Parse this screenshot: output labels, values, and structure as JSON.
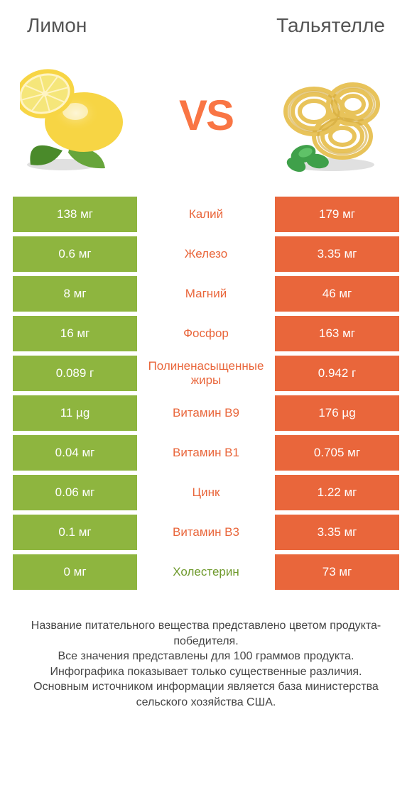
{
  "colors": {
    "left": "#8eb53f",
    "right": "#e9663b",
    "text_left": "#6f9a2d",
    "text_right": "#e9663b",
    "vs": "#f97544",
    "title": "#555555",
    "footer": "#444444",
    "white": "#ffffff"
  },
  "titles": {
    "left": "Лимон",
    "right": "Тальятелле"
  },
  "vs_label": "VS",
  "rows": [
    {
      "left": "138 мг",
      "mid": "Калий",
      "right": "179 мг",
      "winner": "right"
    },
    {
      "left": "0.6 мг",
      "mid": "Железо",
      "right": "3.35 мг",
      "winner": "right"
    },
    {
      "left": "8 мг",
      "mid": "Магний",
      "right": "46 мг",
      "winner": "right"
    },
    {
      "left": "16 мг",
      "mid": "Фосфор",
      "right": "163 мг",
      "winner": "right"
    },
    {
      "left": "0.089 г",
      "mid": "Полиненасыщенные жиры",
      "right": "0.942 г",
      "winner": "right"
    },
    {
      "left": "11 µg",
      "mid": "Витамин B9",
      "right": "176 µg",
      "winner": "right"
    },
    {
      "left": "0.04 мг",
      "mid": "Витамин B1",
      "right": "0.705 мг",
      "winner": "right"
    },
    {
      "left": "0.06 мг",
      "mid": "Цинк",
      "right": "1.22 мг",
      "winner": "right"
    },
    {
      "left": "0.1 мг",
      "mid": "Витамин B3",
      "right": "3.35 мг",
      "winner": "right"
    },
    {
      "left": "0 мг",
      "mid": "Холестерин",
      "right": "73 мг",
      "winner": "left"
    }
  ],
  "footer": "Название питательного вещества представлено цветом продукта-победителя.\nВсе значения представлены для 100 граммов продукта.\nИнфографика показывает только существенные различия.\nОсновным источником информации является база министерства сельского хозяйства США."
}
